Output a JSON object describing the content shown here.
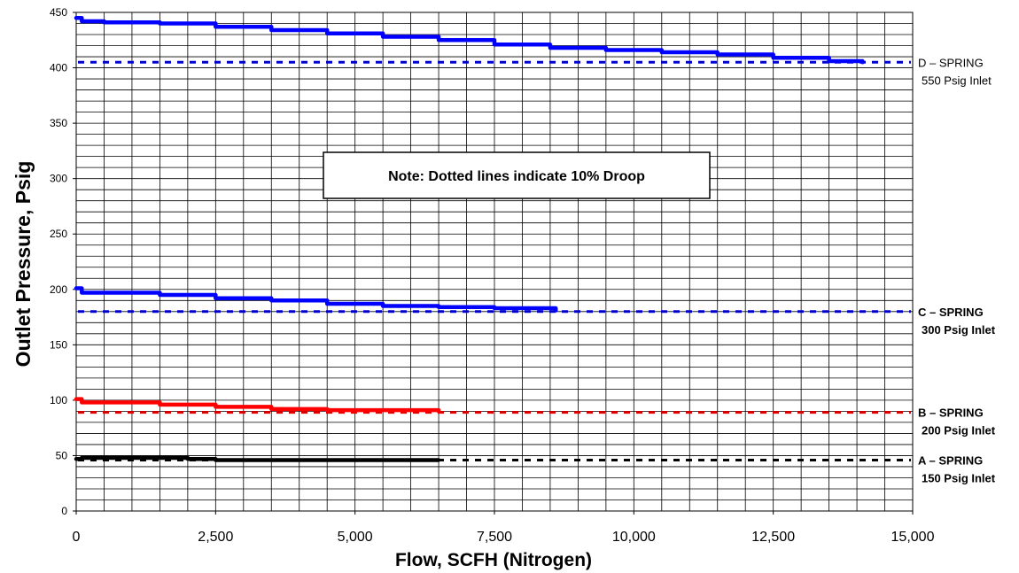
{
  "chart_data": {
    "type": "line",
    "xlabel": "Flow, SCFH (Nitrogen)",
    "ylabel": "Outlet Pressure, Psig",
    "xlim": [
      0,
      15000
    ],
    "ylim": [
      0,
      450
    ],
    "x_ticks": [
      0,
      2500,
      5000,
      7500,
      10000,
      12500,
      15000
    ],
    "x_tick_labels": [
      "0",
      "2,500",
      "5,000",
      "7,500",
      "10,000",
      "12,500",
      "15,000"
    ],
    "y_ticks": [
      0,
      50,
      100,
      150,
      200,
      250,
      300,
      350,
      400,
      450
    ],
    "y_tick_labels": [
      "0",
      "50",
      "100",
      "150",
      "200",
      "250",
      "300",
      "350",
      "400",
      "450"
    ],
    "grid": true,
    "note": "Note:  Dotted lines indicate 10% Droop",
    "series": [
      {
        "curve": "D",
        "color": "#0000ff",
        "label_line1": "D – SPRING",
        "label_line2": "550 Psig Inlet",
        "label_bold": false,
        "droop_value": 405,
        "droop_color": "#0000cc",
        "x": [
          0,
          100,
          500,
          1500,
          2500,
          3500,
          4500,
          5500,
          6500,
          7500,
          8500,
          9500,
          10500,
          11500,
          12500,
          13500,
          14100
        ],
        "y": [
          445,
          442,
          441,
          440,
          437,
          434,
          431,
          428,
          425,
          421,
          418,
          416,
          414,
          412,
          409,
          406,
          405
        ]
      },
      {
        "curve": "C",
        "color": "#0000ff",
        "label_line1": "C – SPRING",
        "label_line2": "300 Psig Inlet",
        "label_bold": true,
        "droop_value": 180,
        "droop_color": "#0000cc",
        "x": [
          0,
          100,
          500,
          1500,
          2500,
          3500,
          4500,
          5500,
          6500,
          7500,
          8600
        ],
        "y": [
          201,
          197,
          197,
          195,
          192,
          190,
          187,
          185,
          184,
          183,
          181
        ]
      },
      {
        "curve": "B",
        "color": "#ff0000",
        "label_line1": "B – SPRING",
        "label_line2": "200 Psig Inlet",
        "label_bold": true,
        "droop_value": 89,
        "droop_color": "#dd0000",
        "x": [
          0,
          100,
          800,
          1500,
          2500,
          3500,
          4500,
          5500,
          6500
        ],
        "y": [
          101,
          98,
          98,
          96,
          94,
          92,
          91,
          91,
          90
        ]
      },
      {
        "curve": "A",
        "color": "#000000",
        "label_line1": "A – SPRING",
        "label_line2": "150 Psig Inlet",
        "label_bold": true,
        "droop_value": 46,
        "droop_color": "#000000",
        "x": [
          0,
          100,
          1000,
          2000,
          2500,
          3500,
          4500,
          5500,
          6500
        ],
        "y": [
          47,
          48,
          48,
          47,
          46,
          46,
          46,
          46,
          46
        ]
      }
    ]
  }
}
